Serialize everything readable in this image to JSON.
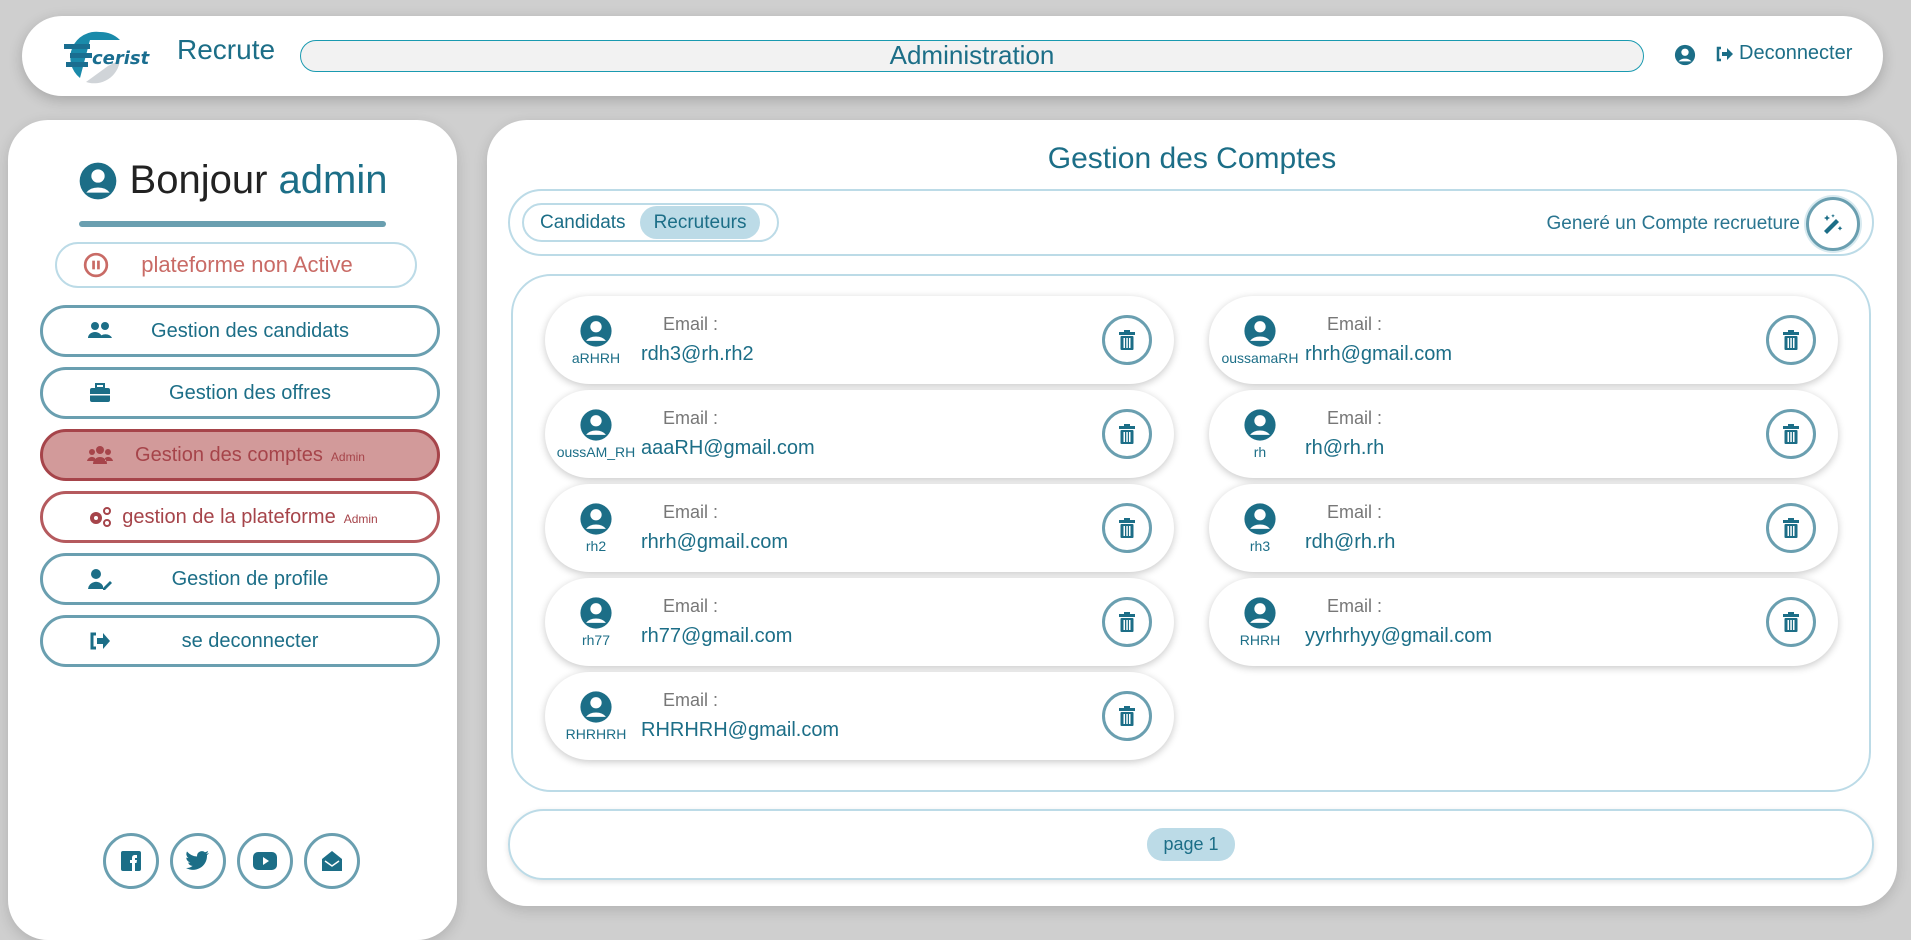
{
  "header": {
    "logo_text": "cerist",
    "brand": "Recrute",
    "title": "Administration",
    "logout_label": "Deconnecter"
  },
  "sidebar": {
    "greeting": "Bonjour",
    "username": "admin",
    "platform_status": "plateforme non Active",
    "menu": [
      {
        "label": "Gestion des candidats",
        "icon": "users-icon"
      },
      {
        "label": "Gestion des offres",
        "icon": "briefcase-icon"
      },
      {
        "label": "Gestion des comptes",
        "badge": "Admin",
        "icon": "group-icon",
        "active": true
      },
      {
        "label": "gestion de la plateforme",
        "badge": "Admin",
        "icon": "gears-icon"
      },
      {
        "label": "Gestion de profile",
        "icon": "user-edit-icon"
      },
      {
        "label": "se deconnecter",
        "icon": "logout-icon"
      }
    ],
    "social": [
      "facebook-icon",
      "twitter-icon",
      "youtube-icon",
      "envelope-open-icon"
    ]
  },
  "main": {
    "title": "Gestion des Comptes",
    "tabs": [
      {
        "label": "Candidats",
        "active": false
      },
      {
        "label": "Recruteurs",
        "active": true
      }
    ],
    "generate_label": "Generé un Compte recrueture",
    "email_label": "Email :",
    "accounts": [
      {
        "username": "aRHRH",
        "email": "rdh3@rh.rh2"
      },
      {
        "username": "oussamaRH",
        "email": "rhrh@gmail.com"
      },
      {
        "username": "oussAM_RH",
        "email": "aaaRH@gmail.com"
      },
      {
        "username": "rh",
        "email": "rh@rh.rh"
      },
      {
        "username": "rh2",
        "email": "rhrh@gmail.com"
      },
      {
        "username": "rh3",
        "email": "rdh@rh.rh"
      },
      {
        "username": "rh77",
        "email": "rh77@gmail.com"
      },
      {
        "username": "RHRH",
        "email": "yyrhrhyy@gmail.com"
      },
      {
        "username": "RHRHRH",
        "email": "RHRHRH@gmail.com"
      }
    ],
    "page_label": "page 1"
  },
  "colors": {
    "primary": "#1c6e87",
    "border": "#6a9fb0",
    "light": "#bcdbe7",
    "danger": "#a6444a",
    "danger_fill": "#d29a9a"
  }
}
